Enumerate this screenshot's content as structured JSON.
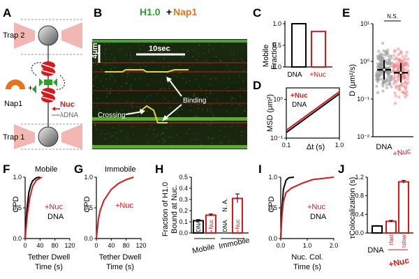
{
  "panels": {
    "A": {
      "letter": "A",
      "trap_top": "Trap 2",
      "trap_bottom": "Trap 1",
      "nap1": "Nap1",
      "nuc": "Nuc",
      "lambda": "λDNA"
    },
    "B": {
      "letter": "B",
      "title_green": "H1.0",
      "title_plus": "+",
      "title_orange": "Nap1",
      "scale_y": "4μm",
      "scale_x": "10sec",
      "binding": "Binding",
      "crossing": "Crossing"
    },
    "C": {
      "letter": "C",
      "ylabel_1": "Mobile",
      "ylabel_2": "Fraction",
      "yticks": [
        "0.0",
        "0.5",
        "1.0"
      ],
      "xlabels": [
        "DNA",
        "+Nuc"
      ]
    },
    "D": {
      "letter": "D",
      "ylabel": "MSD (μm²)",
      "xlabel": "Δt (s)",
      "yticks": [
        "10⁻¹",
        "10⁰"
      ],
      "xticks": [
        "0.1",
        "1.0"
      ],
      "legend_nuc": "+Nuc",
      "legend_dna": "DNA"
    },
    "E": {
      "letter": "E",
      "ylabel": "D (μm²/s)",
      "ns": "N.S.",
      "yticks": [
        "10¹",
        "10⁰",
        "10⁻¹",
        "10⁻²"
      ],
      "xlabels": [
        "DNA",
        "+Nuc"
      ]
    },
    "F": {
      "letter": "F",
      "title": "Mobile",
      "ylabel": "CPD",
      "xlabel_1": "Tether Dwell",
      "xlabel_2": "Time (s)",
      "yticks": [
        "0.0",
        "0.5",
        "1.0"
      ],
      "xticks": [
        "0",
        "40",
        "80",
        "120"
      ],
      "legend_nuc": "+Nuc",
      "legend_dna": "DNA"
    },
    "G": {
      "letter": "G",
      "title": "Immobile",
      "ylabel": "CPD",
      "xlabel_1": "Tether Dwell",
      "xlabel_2": "Time (s)",
      "yticks": [
        "0.0",
        "0.5",
        "1.0"
      ],
      "xticks": [
        "0",
        "40",
        "80",
        "120"
      ],
      "legend_nuc": "+Nuc"
    },
    "H": {
      "letter": "H",
      "ylabel_1": "Fraction of H1.0",
      "ylabel_2": "Bound at Nuc.",
      "yticks": [
        "0.0",
        "0.1",
        "0.2",
        "0.3",
        "0.4",
        "0.5"
      ],
      "bar_labels": [
        "DNA",
        "+Nuc",
        "DNA",
        "+Nuc"
      ],
      "na": "N. A.",
      "groups": [
        "Mobile",
        "Immobile"
      ]
    },
    "I": {
      "letter": "I",
      "ylabel": "CPD",
      "xlabel_1": "Nuc. Col.",
      "xlabel_2": "Time (s)",
      "yticks": [
        "0.0",
        "0.5",
        "1.0"
      ],
      "xticks": [
        "0.0",
        "1.0",
        "2.0"
      ],
      "legend_nuc": "+Nuc",
      "legend_dna": "DNA"
    },
    "J": {
      "letter": "J",
      "ylabel": "τColocalization (s)",
      "yticks": [
        "0.0",
        "0.4",
        "0.8",
        "1.2"
      ],
      "xlabel_dna": "DNA",
      "xlabel_nuc": "+Nuc",
      "tau_fast": "τfast",
      "tau_slow": "τslow"
    }
  },
  "chart_data": [
    {
      "panel": "C",
      "type": "bar",
      "categories": [
        "DNA",
        "+Nuc"
      ],
      "values": [
        1.0,
        0.82
      ],
      "ylim": [
        0,
        1.0
      ]
    },
    {
      "panel": "D",
      "type": "line",
      "xlabel": "Δt (s)",
      "ylabel": "MSD (μm²)",
      "log_x": true,
      "log_y": true,
      "xlim": [
        0.1,
        1.0
      ],
      "ylim": [
        0.1,
        2.0
      ],
      "series": [
        {
          "name": "+Nuc",
          "x": [
            0.1,
            1.0
          ],
          "y": [
            0.16,
            1.6
          ]
        },
        {
          "name": "DNA",
          "x": [
            0.1,
            1.0
          ],
          "y": [
            0.14,
            1.4
          ]
        }
      ]
    },
    {
      "panel": "E",
      "type": "scatter",
      "categories": [
        "DNA",
        "+Nuc"
      ],
      "ylabel": "D (μm²/s)",
      "log_y": true,
      "ylim": [
        0.01,
        10
      ],
      "means": [
        0.6,
        0.5
      ]
    },
    {
      "panel": "F",
      "type": "line",
      "xlabel": "Tether Dwell Time (s)",
      "ylabel": "CPD",
      "xlim": [
        0,
        120
      ],
      "ylim": [
        0,
        1
      ],
      "series": [
        {
          "name": "DNA",
          "x": [
            0,
            2,
            5,
            10,
            15,
            20,
            30,
            40
          ],
          "y": [
            0,
            0.25,
            0.5,
            0.75,
            0.87,
            0.94,
            0.99,
            1.0
          ]
        },
        {
          "name": "+Nuc",
          "x": [
            0,
            3,
            6,
            12,
            20,
            30,
            45
          ],
          "y": [
            0,
            0.2,
            0.4,
            0.65,
            0.85,
            0.95,
            1.0
          ]
        }
      ]
    },
    {
      "panel": "G",
      "type": "line",
      "xlabel": "Tether Dwell Time (s)",
      "ylabel": "CPD",
      "xlim": [
        0,
        120
      ],
      "ylim": [
        0,
        1
      ],
      "series": [
        {
          "name": "+Nuc",
          "x": [
            0,
            5,
            10,
            20,
            40,
            60,
            80,
            100
          ],
          "y": [
            0,
            0.3,
            0.45,
            0.62,
            0.8,
            0.9,
            0.96,
            1.0
          ]
        }
      ]
    },
    {
      "panel": "H",
      "type": "bar",
      "categories": [
        "DNA",
        "+Nuc",
        "DNA",
        "+Nuc"
      ],
      "values": [
        0.11,
        0.16,
        null,
        0.31
      ],
      "errors": [
        0.01,
        0.01,
        null,
        0.04
      ],
      "ylim": [
        0,
        0.5
      ]
    },
    {
      "panel": "I",
      "type": "line",
      "xlabel": "Nuc. Col. Time (s)",
      "ylabel": "CPD",
      "xlim": [
        0,
        2
      ],
      "ylim": [
        0,
        1
      ],
      "series": [
        {
          "name": "DNA",
          "x": [
            0,
            0.05,
            0.1,
            0.2,
            0.3,
            0.5
          ],
          "y": [
            0,
            0.5,
            0.8,
            0.95,
            0.99,
            1.0
          ]
        },
        {
          "name": "+Nuc",
          "x": [
            0,
            0.05,
            0.1,
            0.2,
            0.4,
            0.8,
            1.2,
            2.0
          ],
          "y": [
            0,
            0.4,
            0.6,
            0.75,
            0.82,
            0.9,
            0.96,
            1.0
          ]
        }
      ]
    },
    {
      "panel": "J",
      "type": "bar",
      "categories": [
        "DNA",
        "τfast",
        "τslow"
      ],
      "values": [
        0.15,
        0.25,
        1.1
      ],
      "errors": [
        0.01,
        0.02,
        0.03
      ],
      "ylim": [
        0,
        1.2
      ]
    }
  ],
  "colors": {
    "red": "#d7191c",
    "green": "#2ca02c",
    "orange": "#e8731a",
    "black": "#000000",
    "gray": "#888888"
  }
}
